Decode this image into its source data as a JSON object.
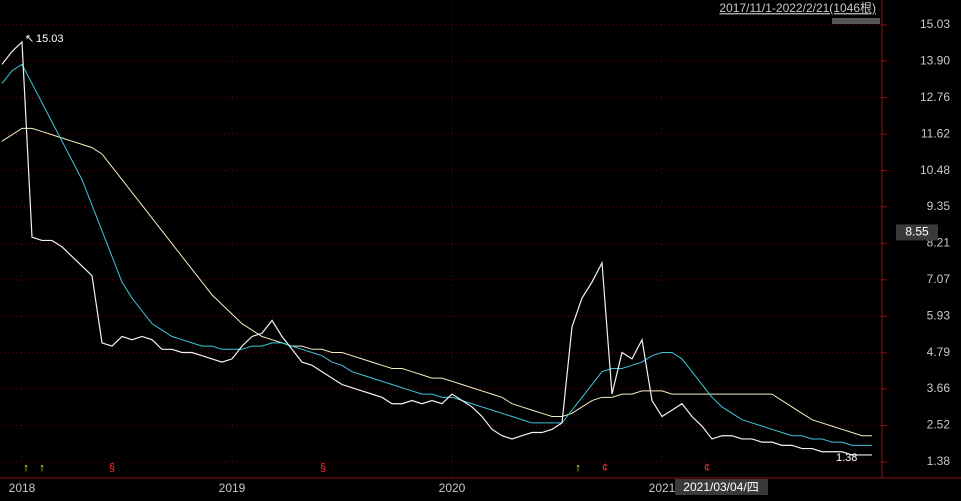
{
  "chart_data": {
    "type": "line",
    "range_label": "2017/11/1-2022/2/21(1046根)",
    "high_label": 15.03,
    "low_label": 1.38,
    "crosshair_price": 8.55,
    "crosshair_date": "2021/03/04/四",
    "categories": [
      null,
      null,
      "2018",
      null,
      null,
      null,
      null,
      null,
      null,
      null,
      null,
      null,
      null,
      null,
      null,
      null,
      null,
      null,
      null,
      null,
      null,
      null,
      null,
      "2019",
      null,
      null,
      null,
      null,
      null,
      null,
      null,
      null,
      null,
      null,
      null,
      null,
      null,
      null,
      null,
      null,
      null,
      null,
      null,
      null,
      null,
      "2020",
      null,
      null,
      null,
      null,
      null,
      null,
      null,
      null,
      null,
      null,
      null,
      null,
      null,
      null,
      null,
      null,
      null,
      null,
      null,
      null,
      "2021",
      null,
      null,
      null,
      null,
      null,
      null,
      null,
      null,
      null,
      null,
      null,
      null,
      null,
      null,
      null,
      null,
      null,
      null,
      null,
      null,
      null
    ],
    "series": [
      {
        "color": "#f2f2f2",
        "values": [
          13.8,
          14.2,
          14.5,
          8.4,
          8.3,
          8.3,
          8.1,
          7.8,
          7.5,
          7.2,
          5.1,
          5.0,
          5.3,
          5.2,
          5.3,
          5.2,
          4.9,
          4.9,
          4.8,
          4.8,
          4.7,
          4.6,
          4.5,
          4.6,
          5.0,
          5.3,
          5.4,
          5.8,
          5.3,
          4.9,
          4.5,
          4.4,
          4.2,
          4.0,
          3.8,
          3.7,
          3.6,
          3.5,
          3.4,
          3.2,
          3.2,
          3.3,
          3.2,
          3.3,
          3.2,
          3.5,
          3.3,
          3.1,
          2.8,
          2.4,
          2.2,
          2.1,
          2.2,
          2.3,
          2.3,
          2.4,
          2.6,
          5.6,
          6.5,
          7.0,
          7.6,
          3.5,
          4.8,
          4.6,
          5.2,
          3.3,
          2.8,
          3.0,
          3.2,
          2.8,
          2.5,
          2.1,
          2.2,
          2.2,
          2.1,
          2.1,
          2.0,
          2.0,
          1.9,
          1.9,
          1.8,
          1.8,
          1.7,
          1.7,
          1.7,
          1.6,
          1.6,
          1.6
        ]
      },
      {
        "color": "#3fc8d8",
        "values": [
          13.2,
          13.6,
          13.8,
          13.2,
          12.6,
          12.0,
          11.4,
          10.8,
          10.2,
          9.4,
          8.6,
          7.8,
          7.0,
          6.5,
          6.1,
          5.7,
          5.5,
          5.3,
          5.2,
          5.1,
          5.0,
          5.0,
          4.9,
          4.9,
          4.9,
          5.0,
          5.0,
          5.1,
          5.1,
          5.0,
          4.9,
          4.8,
          4.7,
          4.5,
          4.4,
          4.2,
          4.1,
          4.0,
          3.9,
          3.8,
          3.7,
          3.6,
          3.5,
          3.5,
          3.4,
          3.4,
          3.3,
          3.2,
          3.1,
          3.0,
          2.9,
          2.8,
          2.7,
          2.6,
          2.6,
          2.6,
          2.6,
          3.0,
          3.4,
          3.8,
          4.2,
          4.3,
          4.3,
          4.4,
          4.5,
          4.7,
          4.8,
          4.8,
          4.6,
          4.2,
          3.8,
          3.4,
          3.1,
          2.9,
          2.7,
          2.6,
          2.5,
          2.4,
          2.3,
          2.2,
          2.2,
          2.1,
          2.1,
          2.0,
          2.0,
          1.9,
          1.9,
          1.9
        ]
      },
      {
        "color": "#f3f0c0",
        "values": [
          11.4,
          11.6,
          11.8,
          11.8,
          11.7,
          11.6,
          11.5,
          11.4,
          11.3,
          11.2,
          11.0,
          10.6,
          10.2,
          9.8,
          9.4,
          9.0,
          8.6,
          8.2,
          7.8,
          7.4,
          7.0,
          6.6,
          6.3,
          6.0,
          5.7,
          5.5,
          5.3,
          5.2,
          5.1,
          5.0,
          5.0,
          4.9,
          4.9,
          4.8,
          4.8,
          4.7,
          4.6,
          4.5,
          4.4,
          4.3,
          4.3,
          4.2,
          4.1,
          4.0,
          4.0,
          3.9,
          3.8,
          3.7,
          3.6,
          3.5,
          3.4,
          3.2,
          3.1,
          3.0,
          2.9,
          2.8,
          2.8,
          2.9,
          3.1,
          3.3,
          3.4,
          3.4,
          3.5,
          3.5,
          3.6,
          3.6,
          3.6,
          3.5,
          3.5,
          3.5,
          3.5,
          3.5,
          3.5,
          3.5,
          3.5,
          3.5,
          3.5,
          3.5,
          3.3,
          3.1,
          2.9,
          2.7,
          2.6,
          2.5,
          2.4,
          2.3,
          2.2,
          2.2
        ]
      }
    ],
    "ylim": [
      0.88,
      15.81
    ],
    "yticks": [
      15.03,
      {
        "value": 13.9,
        "label": "13.90"
      },
      12.76,
      11.62,
      10.48,
      9.35,
      8.21,
      7.07,
      5.93,
      4.79,
      3.66,
      2.52,
      1.38
    ],
    "grid": true
  }
}
